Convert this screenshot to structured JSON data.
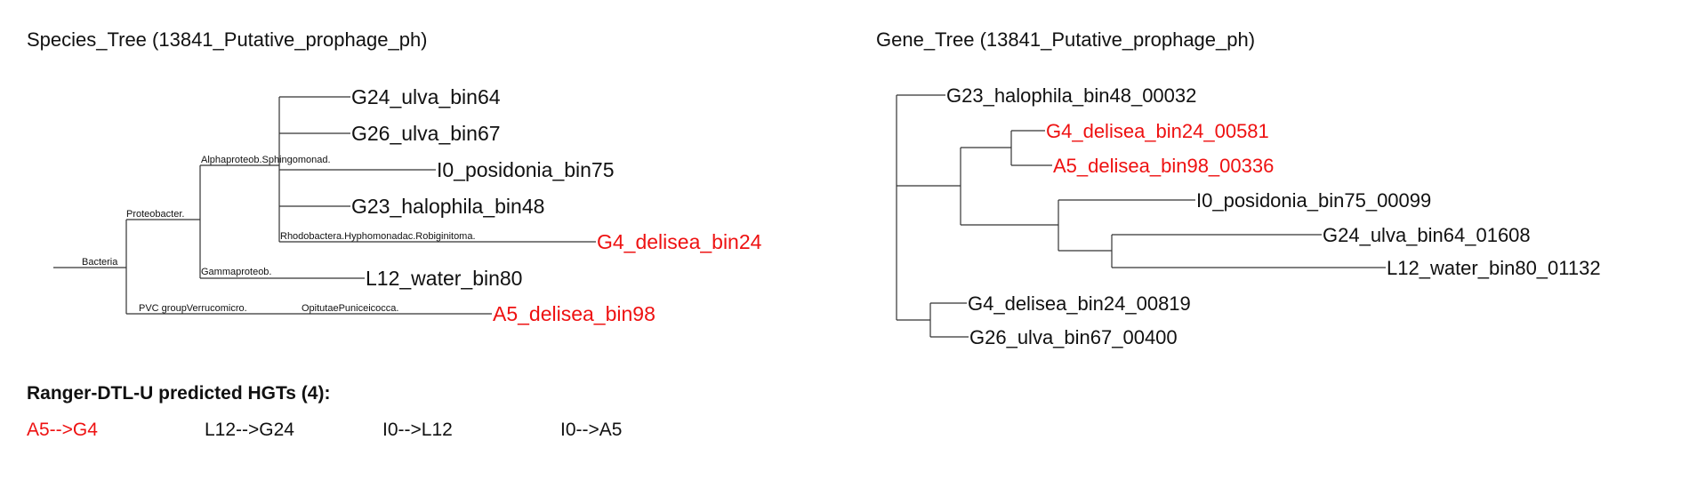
{
  "species_tree": {
    "title": "Species_Tree (13841_Putative_prophage_ph)",
    "internal_labels": {
      "bacteria": "Bacteria",
      "proteobacteria": "Proteobacter.",
      "alphaproteobacteria": "Alphaproteob.Sphingomonad.",
      "rhodobacteraceae": "Rhodobactera.Hyphomonadac.Robiginitoma.",
      "gammaproteobacteria": "Gammaproteob.",
      "pvc_group": "PVC groupVerrucomicro.",
      "opitutae": "OpitutaePuniceicocca."
    },
    "leaves": {
      "g24": "G24_ulva_bin64",
      "g26": "G26_ulva_bin67",
      "i0": "I0_posidonia_bin75",
      "g23": "G23_halophila_bin48",
      "g4": "G4_delisea_bin24",
      "l12": "L12_water_bin80",
      "a5": "A5_delisea_bin98"
    }
  },
  "gene_tree": {
    "title": "Gene_Tree (13841_Putative_prophage_ph)",
    "leaves": {
      "g23": "G23_halophila_bin48_00032",
      "g4a": "G4_delisea_bin24_00581",
      "a5": "A5_delisea_bin98_00336",
      "i0": "I0_posidonia_bin75_00099",
      "g24": "G24_ulva_bin64_01608",
      "l12": "L12_water_bin80_01132",
      "g4b": "G4_delisea_bin24_00819",
      "g26": "G26_ulva_bin67_00400"
    }
  },
  "hgt": {
    "heading": "Ranger-DTL-U predicted HGTs (4):",
    "items": [
      "A5-->G4",
      "L12-->G24",
      "I0-->L12",
      "I0-->A5"
    ]
  },
  "colors": {
    "highlight": "#ee1111",
    "text": "#111111",
    "line": "#333333"
  }
}
